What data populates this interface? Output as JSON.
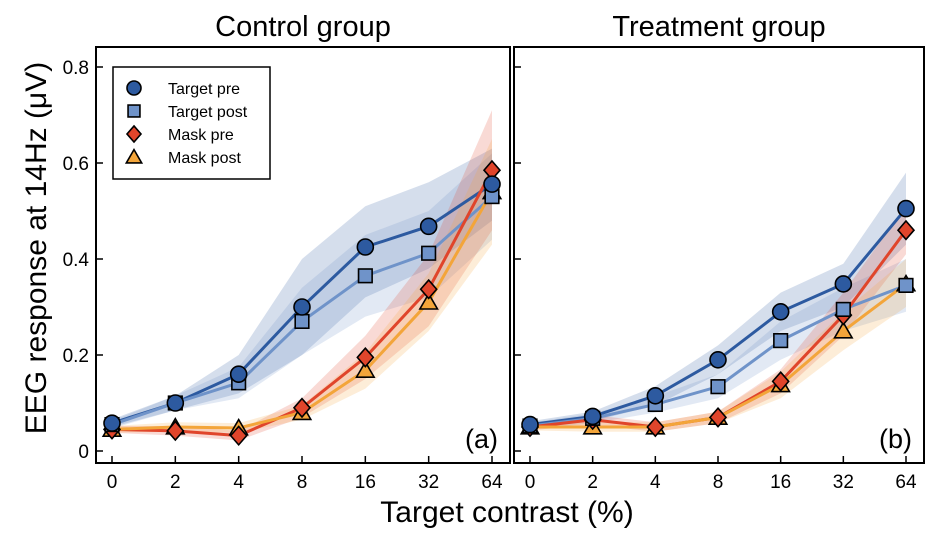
{
  "figure": {
    "xlabel": "Target contrast (%)",
    "ylabel": "EEG response at 14Hz (μV)"
  },
  "colors": {
    "target_pre": "#2d5aa0",
    "target_post": "#6f93c9",
    "mask_pre": "#e0452b",
    "mask_post": "#f3a53a"
  },
  "chart_data": [
    {
      "type": "line",
      "title": "Control group",
      "panel_label": "(a)",
      "x": [
        0,
        2,
        4,
        8,
        16,
        32,
        64
      ],
      "x_tick_labels": [
        "0",
        "2",
        "4",
        "8",
        "16",
        "32",
        "64"
      ],
      "x_scale": "log-spaced categories",
      "xlabel": "Target contrast (%)",
      "ylabel": "EEG response at 14Hz (μV)",
      "ylim": [
        0,
        0.8
      ],
      "y_ticks": [
        "0",
        "0.2",
        "0.4",
        "0.6",
        "0.8"
      ],
      "grid": false,
      "legend_position": "top-left",
      "series": [
        {
          "name": "Target pre",
          "marker": "circle",
          "color": "#2d5aa0",
          "values": [
            0.058,
            0.1,
            0.16,
            0.3,
            0.425,
            0.468,
            0.556
          ],
          "band_lower": [
            0.05,
            0.085,
            0.12,
            0.2,
            0.32,
            0.38,
            0.48
          ],
          "band_upper": [
            0.066,
            0.115,
            0.2,
            0.4,
            0.51,
            0.56,
            0.63
          ]
        },
        {
          "name": "Target post",
          "marker": "square",
          "color": "#6f93c9",
          "values": [
            0.055,
            0.1,
            0.142,
            0.27,
            0.365,
            0.412,
            0.53
          ],
          "band_lower": [
            0.047,
            0.085,
            0.11,
            0.2,
            0.28,
            0.32,
            0.44
          ],
          "band_upper": [
            0.063,
            0.115,
            0.175,
            0.34,
            0.45,
            0.5,
            0.62
          ]
        },
        {
          "name": "Mask pre",
          "marker": "diamond",
          "color": "#e0452b",
          "values": [
            0.045,
            0.042,
            0.032,
            0.09,
            0.195,
            0.337,
            0.585
          ],
          "band_lower": [
            0.038,
            0.032,
            0.022,
            0.07,
            0.15,
            0.26,
            0.46
          ],
          "band_upper": [
            0.052,
            0.052,
            0.042,
            0.11,
            0.24,
            0.41,
            0.71
          ]
        },
        {
          "name": "Mask post",
          "marker": "triangle",
          "color": "#f3a53a",
          "values": [
            0.045,
            0.05,
            0.048,
            0.08,
            0.168,
            0.31,
            0.54
          ],
          "band_lower": [
            0.038,
            0.04,
            0.038,
            0.065,
            0.13,
            0.25,
            0.43
          ],
          "band_upper": [
            0.052,
            0.06,
            0.058,
            0.095,
            0.205,
            0.37,
            0.65
          ]
        }
      ]
    },
    {
      "type": "line",
      "title": "Treatment group",
      "panel_label": "(b)",
      "x": [
        0,
        2,
        4,
        8,
        16,
        32,
        64
      ],
      "x_tick_labels": [
        "0",
        "2",
        "4",
        "8",
        "16",
        "32",
        "64"
      ],
      "x_scale": "log-spaced categories",
      "ylim": [
        0,
        0.8
      ],
      "grid": false,
      "series": [
        {
          "name": "Target pre",
          "marker": "circle",
          "color": "#2d5aa0",
          "values": [
            0.055,
            0.072,
            0.115,
            0.19,
            0.29,
            0.348,
            0.505
          ],
          "band_lower": [
            0.048,
            0.062,
            0.095,
            0.16,
            0.25,
            0.3,
            0.43
          ],
          "band_upper": [
            0.062,
            0.082,
            0.135,
            0.22,
            0.33,
            0.39,
            0.58
          ]
        },
        {
          "name": "Target post",
          "marker": "square",
          "color": "#6f93c9",
          "values": [
            0.052,
            0.068,
            0.097,
            0.134,
            0.23,
            0.295,
            0.345
          ],
          "band_lower": [
            0.045,
            0.058,
            0.08,
            0.11,
            0.19,
            0.25,
            0.29
          ],
          "band_upper": [
            0.059,
            0.078,
            0.114,
            0.16,
            0.27,
            0.34,
            0.4
          ]
        },
        {
          "name": "Mask pre",
          "marker": "diamond",
          "color": "#e0452b",
          "values": [
            0.05,
            0.065,
            0.05,
            0.07,
            0.145,
            0.283,
            0.46
          ],
          "band_lower": [
            0.043,
            0.055,
            0.04,
            0.058,
            0.12,
            0.24,
            0.41
          ],
          "band_upper": [
            0.057,
            0.075,
            0.06,
            0.082,
            0.17,
            0.33,
            0.51
          ]
        },
        {
          "name": "Mask post",
          "marker": "triangle",
          "color": "#f3a53a",
          "values": [
            0.05,
            0.05,
            0.05,
            0.07,
            0.138,
            0.25,
            0.348
          ],
          "band_lower": [
            0.043,
            0.04,
            0.04,
            0.058,
            0.11,
            0.21,
            0.3
          ],
          "band_upper": [
            0.057,
            0.06,
            0.06,
            0.082,
            0.165,
            0.29,
            0.4
          ]
        }
      ]
    }
  ]
}
